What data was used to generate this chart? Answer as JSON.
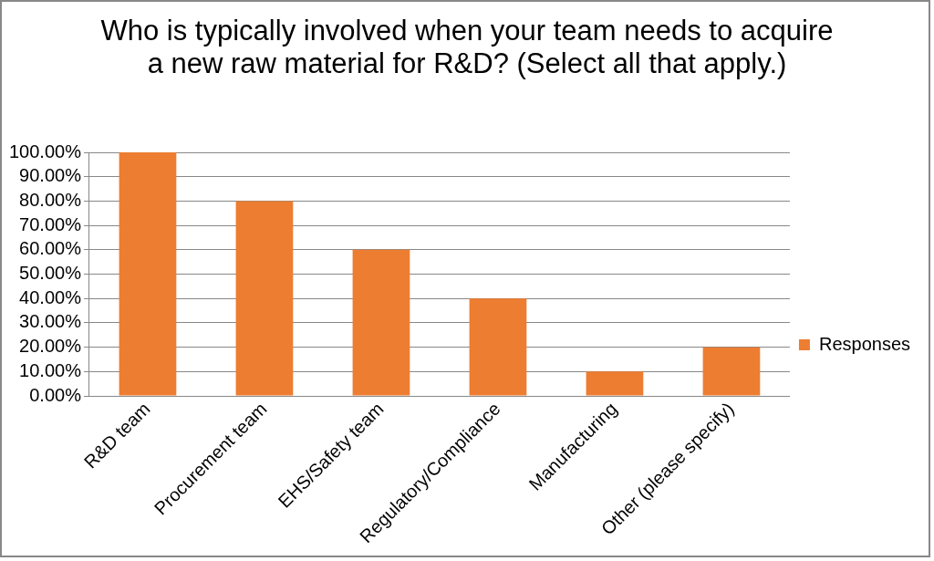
{
  "chart_data": {
    "type": "bar",
    "title": "Who is typically involved when your team needs to acquire a new raw material for R&D? (Select all that apply.)",
    "categories": [
      "R&D team",
      "Procurement team",
      "EHS/Safety team",
      "Regulatory/Compliance",
      "Manufacturing",
      "Other (please specify)"
    ],
    "series": [
      {
        "name": "Responses",
        "color": "#ed7d31",
        "values": [
          100,
          80,
          60,
          40,
          10,
          20
        ]
      }
    ],
    "ylim": [
      0,
      100
    ],
    "yticks": [
      {
        "value": 0,
        "label": "0.00%"
      },
      {
        "value": 10,
        "label": "10.00%"
      },
      {
        "value": 20,
        "label": "20.00%"
      },
      {
        "value": 30,
        "label": "30.00%"
      },
      {
        "value": 40,
        "label": "40.00%"
      },
      {
        "value": 50,
        "label": "50.00%"
      },
      {
        "value": 60,
        "label": "60.00%"
      },
      {
        "value": 70,
        "label": "70.00%"
      },
      {
        "value": 80,
        "label": "80.00%"
      },
      {
        "value": 90,
        "label": "90.00%"
      },
      {
        "value": 100,
        "label": "100.00%"
      }
    ],
    "grid": "y",
    "legend": "right"
  }
}
